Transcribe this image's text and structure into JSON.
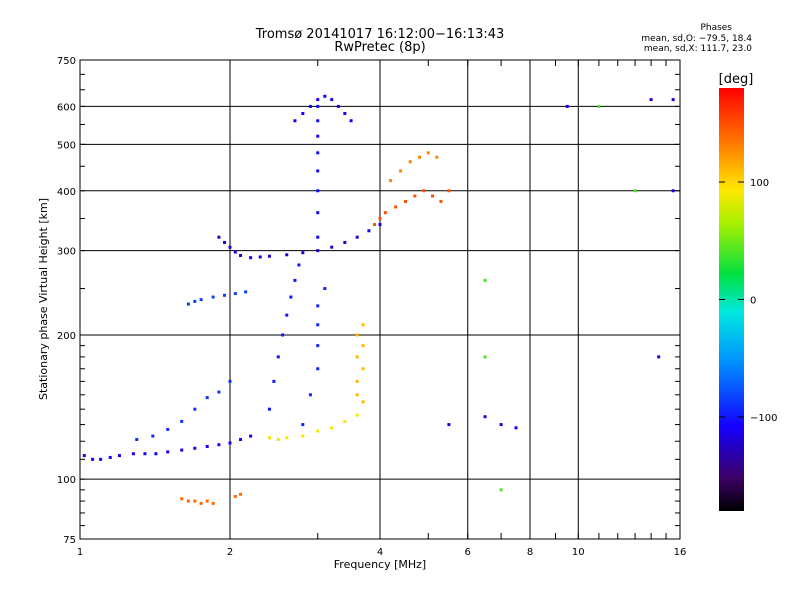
{
  "chart_data": {
    "type": "scatter",
    "title": "Tromsø 20141017 16:12:00−16:13:43",
    "subtitle": "RwPretec (8p)",
    "xlabel": "Frequency [MHz]",
    "ylabel": "Stationary phase Virtual Height [km]",
    "x_scale": "log",
    "y_scale": "log",
    "xlim": [
      1,
      16
    ],
    "ylim": [
      75,
      750
    ],
    "x_ticks": [
      1,
      2,
      4,
      6,
      8,
      10,
      16
    ],
    "y_ticks": [
      75,
      100,
      200,
      300,
      400,
      500,
      600,
      750
    ],
    "grid": true,
    "phase_stats": {
      "heading": "Phases",
      "o_line": "mean, sd,O: −79.5, 18.4",
      "x_line": "mean, sd,X: 111.7, 23.0"
    },
    "colorbar": {
      "label": "[deg]",
      "ticks": [
        100,
        0,
        -100
      ],
      "tick_labels": [
        "100",
        "0",
        "−100"
      ],
      "range": [
        -180,
        180
      ],
      "colormap": "rainbow"
    },
    "series": [
      {
        "phase": -110,
        "points": [
          [
            1.02,
            112
          ],
          [
            1.06,
            110
          ],
          [
            1.1,
            110
          ],
          [
            1.15,
            111
          ],
          [
            1.2,
            112
          ],
          [
            1.28,
            113
          ],
          [
            1.35,
            113
          ],
          [
            1.42,
            113
          ],
          [
            1.5,
            114
          ],
          [
            1.6,
            115
          ],
          [
            1.7,
            116
          ],
          [
            1.8,
            117
          ],
          [
            1.9,
            118
          ],
          [
            2.0,
            119
          ],
          [
            2.1,
            121
          ],
          [
            2.2,
            123
          ]
        ]
      },
      {
        "phase": -90,
        "points": [
          [
            1.3,
            121
          ],
          [
            1.4,
            123
          ],
          [
            1.5,
            127
          ],
          [
            1.6,
            132
          ],
          [
            1.7,
            140
          ],
          [
            1.8,
            148
          ],
          [
            1.9,
            152
          ],
          [
            2.0,
            160
          ]
        ]
      },
      {
        "phase": -85,
        "points": [
          [
            1.65,
            232
          ],
          [
            1.7,
            235
          ],
          [
            1.75,
            237
          ],
          [
            1.85,
            240
          ],
          [
            1.95,
            242
          ],
          [
            2.05,
            244
          ],
          [
            2.15,
            246
          ]
        ]
      },
      {
        "phase": -120,
        "points": [
          [
            1.9,
            320
          ],
          [
            1.95,
            312
          ],
          [
            2.0,
            305
          ],
          [
            2.05,
            298
          ],
          [
            2.1,
            293
          ],
          [
            2.2,
            290
          ],
          [
            2.3,
            291
          ],
          [
            2.4,
            292
          ],
          [
            2.6,
            294
          ],
          [
            2.8,
            297
          ],
          [
            3.0,
            300
          ],
          [
            3.2,
            305
          ],
          [
            3.4,
            312
          ],
          [
            3.6,
            320
          ],
          [
            3.8,
            330
          ],
          [
            4.0,
            340
          ]
        ]
      },
      {
        "phase": -110,
        "points": [
          [
            2.7,
            560
          ],
          [
            2.8,
            580
          ],
          [
            2.9,
            600
          ],
          [
            3.0,
            620
          ],
          [
            3.1,
            630
          ],
          [
            3.2,
            620
          ],
          [
            3.3,
            600
          ],
          [
            3.4,
            580
          ],
          [
            3.5,
            560
          ]
        ]
      },
      {
        "phase": -105,
        "points": [
          [
            3.0,
            320
          ],
          [
            3.0,
            360
          ],
          [
            3.0,
            400
          ],
          [
            3.0,
            440
          ],
          [
            3.0,
            480
          ],
          [
            3.0,
            520
          ],
          [
            3.0,
            560
          ],
          [
            3.0,
            600
          ]
        ]
      },
      {
        "phase": -100,
        "points": [
          [
            2.4,
            140
          ],
          [
            2.45,
            160
          ],
          [
            2.5,
            180
          ],
          [
            2.55,
            200
          ],
          [
            2.6,
            220
          ],
          [
            2.65,
            240
          ],
          [
            2.7,
            260
          ],
          [
            2.75,
            280
          ]
        ]
      },
      {
        "phase": -95,
        "points": [
          [
            2.8,
            130
          ],
          [
            2.9,
            150
          ],
          [
            3.0,
            170
          ],
          [
            3.0,
            190
          ],
          [
            3.0,
            210
          ],
          [
            3.0,
            230
          ],
          [
            3.1,
            250
          ]
        ]
      },
      {
        "phase": 110,
        "points": [
          [
            3.6,
            150
          ],
          [
            3.7,
            145
          ],
          [
            3.6,
            160
          ],
          [
            3.7,
            170
          ],
          [
            3.6,
            180
          ],
          [
            3.7,
            190
          ],
          [
            3.6,
            200
          ],
          [
            3.7,
            210
          ]
        ]
      },
      {
        "phase": 150,
        "points": [
          [
            3.9,
            340
          ],
          [
            4.0,
            350
          ],
          [
            4.1,
            360
          ],
          [
            4.3,
            370
          ],
          [
            4.5,
            380
          ],
          [
            4.7,
            390
          ],
          [
            4.9,
            400
          ],
          [
            5.1,
            390
          ],
          [
            5.3,
            380
          ],
          [
            5.5,
            400
          ]
        ]
      },
      {
        "phase": 130,
        "points": [
          [
            4.2,
            420
          ],
          [
            4.4,
            440
          ],
          [
            4.6,
            460
          ],
          [
            4.8,
            470
          ],
          [
            5.0,
            480
          ],
          [
            5.2,
            470
          ]
        ]
      },
      {
        "phase": 140,
        "points": [
          [
            1.6,
            91
          ],
          [
            1.65,
            90
          ],
          [
            1.7,
            90
          ],
          [
            1.75,
            89
          ],
          [
            1.8,
            90
          ],
          [
            1.85,
            89
          ],
          [
            2.05,
            92
          ],
          [
            2.1,
            93
          ]
        ]
      },
      {
        "phase": 90,
        "points": [
          [
            2.4,
            122
          ],
          [
            2.5,
            121
          ],
          [
            2.6,
            122
          ],
          [
            2.8,
            123
          ],
          [
            3.0,
            126
          ],
          [
            3.2,
            128
          ],
          [
            3.4,
            132
          ],
          [
            3.6,
            136
          ]
        ]
      },
      {
        "phase": -120,
        "points": [
          [
            5.5,
            130
          ],
          [
            6.5,
            135
          ],
          [
            7.0,
            130
          ],
          [
            7.5,
            128
          ],
          [
            9.5,
            600
          ],
          [
            14.0,
            620
          ],
          [
            14.5,
            180
          ],
          [
            15.5,
            400
          ],
          [
            15.5,
            620
          ]
        ]
      },
      {
        "phase": 40,
        "points": [
          [
            6.5,
            260
          ],
          [
            6.5,
            180
          ],
          [
            7.0,
            95
          ],
          [
            11.0,
            600
          ],
          [
            13.0,
            400
          ]
        ]
      }
    ]
  }
}
